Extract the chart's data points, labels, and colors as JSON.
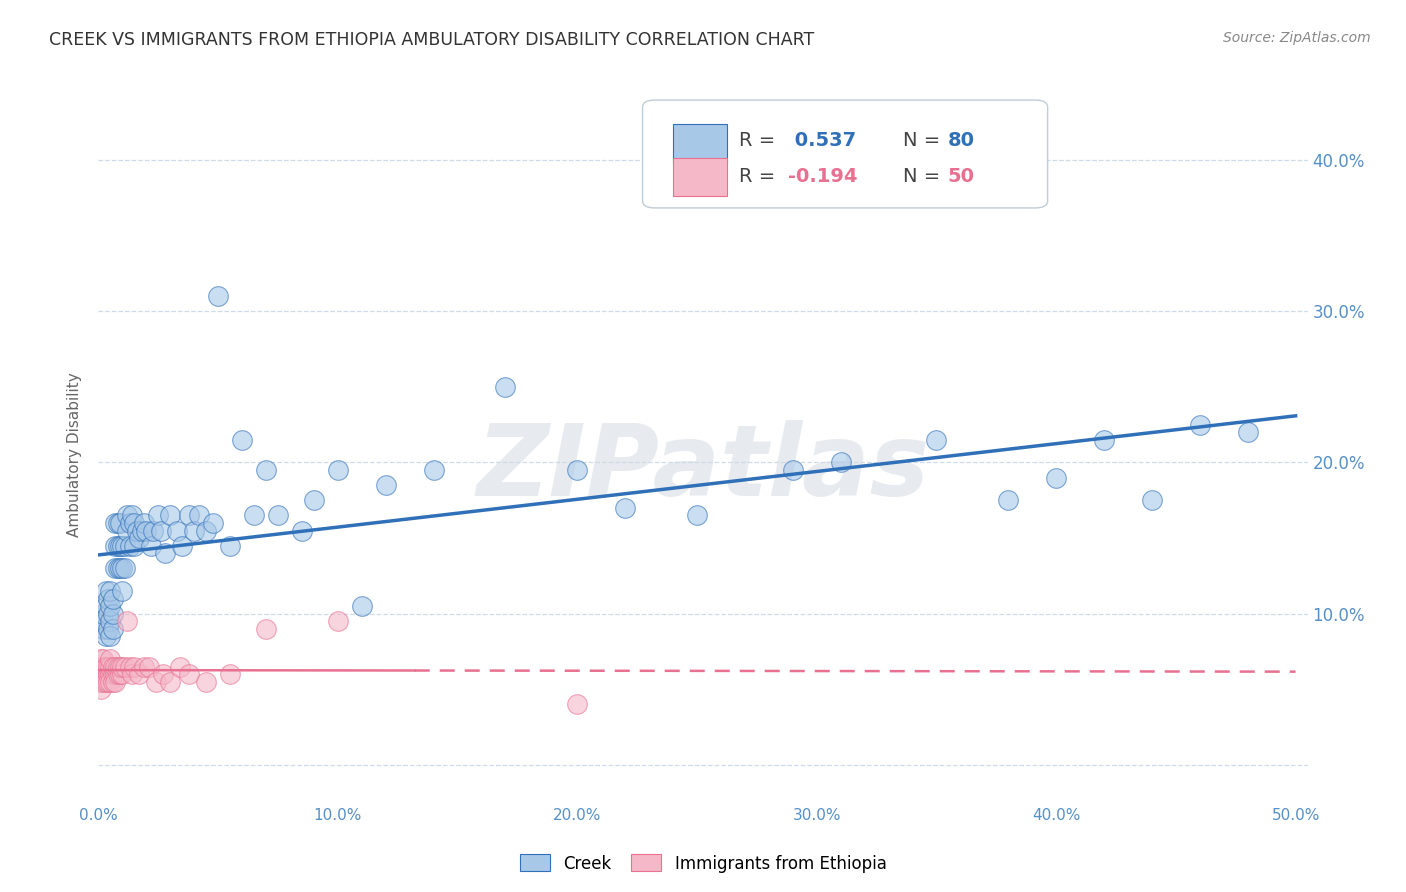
{
  "title": "CREEK VS IMMIGRANTS FROM ETHIOPIA AMBULATORY DISABILITY CORRELATION CHART",
  "source": "Source: ZipAtlas.com",
  "ylabel": "Ambulatory Disability",
  "xlim": [
    0.0,
    0.505
  ],
  "ylim": [
    -0.025,
    0.435
  ],
  "xticks": [
    0.0,
    0.1,
    0.2,
    0.3,
    0.4,
    0.5
  ],
  "yticks": [
    0.0,
    0.1,
    0.2,
    0.3,
    0.4
  ],
  "xticklabels": [
    "0.0%",
    "10.0%",
    "20.0%",
    "30.0%",
    "40.0%",
    "50.0%"
  ],
  "yticklabels_right": [
    "",
    "10.0%",
    "20.0%",
    "30.0%",
    "40.0%"
  ],
  "creek_R": "0.537",
  "creek_N": "80",
  "ethiopia_R": "-0.194",
  "ethiopia_N": "50",
  "creek_color": "#a8c8e8",
  "ethiopia_color": "#f4b8c8",
  "trendline_creek_color": "#3070b8",
  "trendline_ethiopia_color": "#e87090",
  "background_color": "#ffffff",
  "grid_color": "#c8d8e8",
  "axis_color": "#5590c8",
  "watermark": "ZIPatlas",
  "legend_R_color": "#3070b8",
  "legend_text_color": "#444444",
  "creek_x": [
    0.001,
    0.002,
    0.002,
    0.003,
    0.003,
    0.003,
    0.004,
    0.004,
    0.004,
    0.005,
    0.005,
    0.005,
    0.005,
    0.006,
    0.006,
    0.006,
    0.007,
    0.007,
    0.007,
    0.008,
    0.008,
    0.008,
    0.009,
    0.009,
    0.009,
    0.01,
    0.01,
    0.01,
    0.011,
    0.011,
    0.012,
    0.012,
    0.013,
    0.013,
    0.014,
    0.015,
    0.015,
    0.016,
    0.017,
    0.018,
    0.019,
    0.02,
    0.022,
    0.023,
    0.025,
    0.026,
    0.028,
    0.03,
    0.033,
    0.035,
    0.038,
    0.04,
    0.042,
    0.045,
    0.048,
    0.05,
    0.055,
    0.06,
    0.065,
    0.07,
    0.075,
    0.085,
    0.09,
    0.1,
    0.11,
    0.12,
    0.14,
    0.17,
    0.2,
    0.22,
    0.25,
    0.29,
    0.31,
    0.35,
    0.38,
    0.4,
    0.42,
    0.44,
    0.46,
    0.48
  ],
  "creek_y": [
    0.095,
    0.09,
    0.1,
    0.085,
    0.105,
    0.115,
    0.09,
    0.1,
    0.11,
    0.095,
    0.085,
    0.105,
    0.115,
    0.09,
    0.1,
    0.11,
    0.13,
    0.145,
    0.16,
    0.13,
    0.145,
    0.16,
    0.13,
    0.145,
    0.16,
    0.115,
    0.13,
    0.145,
    0.13,
    0.145,
    0.155,
    0.165,
    0.145,
    0.16,
    0.165,
    0.145,
    0.16,
    0.155,
    0.15,
    0.155,
    0.16,
    0.155,
    0.145,
    0.155,
    0.165,
    0.155,
    0.14,
    0.165,
    0.155,
    0.145,
    0.165,
    0.155,
    0.165,
    0.155,
    0.16,
    0.31,
    0.145,
    0.215,
    0.165,
    0.195,
    0.165,
    0.155,
    0.175,
    0.195,
    0.105,
    0.185,
    0.195,
    0.25,
    0.195,
    0.17,
    0.165,
    0.195,
    0.2,
    0.215,
    0.175,
    0.19,
    0.215,
    0.175,
    0.225,
    0.22
  ],
  "ethiopia_x": [
    0.001,
    0.001,
    0.001,
    0.001,
    0.001,
    0.002,
    0.002,
    0.002,
    0.002,
    0.003,
    0.003,
    0.003,
    0.003,
    0.004,
    0.004,
    0.004,
    0.005,
    0.005,
    0.005,
    0.005,
    0.006,
    0.006,
    0.006,
    0.007,
    0.007,
    0.007,
    0.008,
    0.008,
    0.009,
    0.009,
    0.01,
    0.01,
    0.011,
    0.012,
    0.013,
    0.014,
    0.015,
    0.017,
    0.019,
    0.021,
    0.024,
    0.027,
    0.03,
    0.034,
    0.038,
    0.045,
    0.055,
    0.07,
    0.1,
    0.2
  ],
  "ethiopia_y": [
    0.06,
    0.065,
    0.07,
    0.055,
    0.05,
    0.06,
    0.065,
    0.055,
    0.07,
    0.06,
    0.065,
    0.055,
    0.065,
    0.06,
    0.065,
    0.055,
    0.06,
    0.065,
    0.07,
    0.055,
    0.06,
    0.065,
    0.055,
    0.06,
    0.065,
    0.055,
    0.06,
    0.065,
    0.06,
    0.065,
    0.06,
    0.065,
    0.065,
    0.095,
    0.065,
    0.06,
    0.065,
    0.06,
    0.065,
    0.065,
    0.055,
    0.06,
    0.055,
    0.065,
    0.06,
    0.055,
    0.06,
    0.09,
    0.095,
    0.04
  ]
}
